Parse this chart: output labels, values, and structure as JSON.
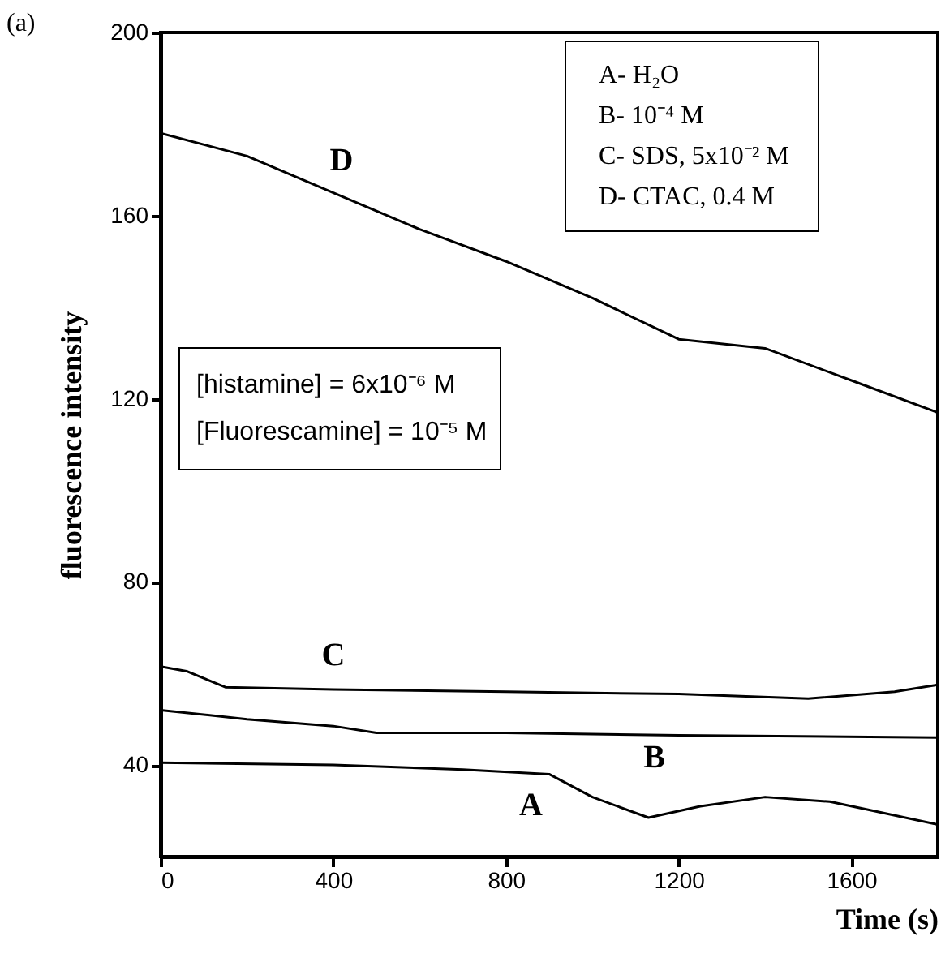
{
  "chart_data": {
    "type": "line",
    "title": "(a)",
    "xlabel": "Time (s)",
    "ylabel": "fluorescence intensity",
    "xlim": [
      0,
      1800
    ],
    "xticks": [
      0,
      400,
      800,
      1200,
      1600
    ],
    "ylim": [
      20,
      200
    ],
    "yticks": [
      40,
      80,
      120,
      160,
      200
    ],
    "grid": false,
    "marker": "none",
    "line_style": "solid",
    "series": [
      {
        "name": "D",
        "color": "#000000",
        "x": [
          0,
          200,
          400,
          600,
          800,
          1000,
          1200,
          1400,
          1600,
          1800
        ],
        "values": [
          178,
          173,
          165,
          157,
          150,
          142,
          133,
          131,
          124,
          117
        ]
      },
      {
        "name": "C",
        "color": "#000000",
        "x": [
          0,
          60,
          150,
          400,
          800,
          1200,
          1500,
          1700,
          1800
        ],
        "values": [
          61.5,
          60.5,
          57,
          56.5,
          56,
          55.5,
          54.5,
          56,
          57.5
        ]
      },
      {
        "name": "B",
        "color": "#000000",
        "x": [
          0,
          200,
          400,
          500,
          800,
          1200,
          1800
        ],
        "values": [
          52,
          50,
          48.5,
          47,
          47,
          46.5,
          46
        ]
      },
      {
        "name": "A",
        "color": "#000000",
        "x": [
          0,
          400,
          700,
          900,
          1000,
          1130,
          1250,
          1400,
          1550,
          1650,
          1800
        ],
        "values": [
          40.5,
          40,
          39,
          38,
          33,
          28.5,
          31,
          33,
          32,
          30,
          27
        ]
      }
    ],
    "annotations": [
      "A- H₂O",
      "B- 10⁻⁴ M",
      "C- SDS, 5x10⁻² M",
      "D- CTAC, 0.4 M",
      "[histamine] = 6x10⁻⁶ M",
      "[Fluorescamine] = 10⁻⁵ M"
    ]
  }
}
